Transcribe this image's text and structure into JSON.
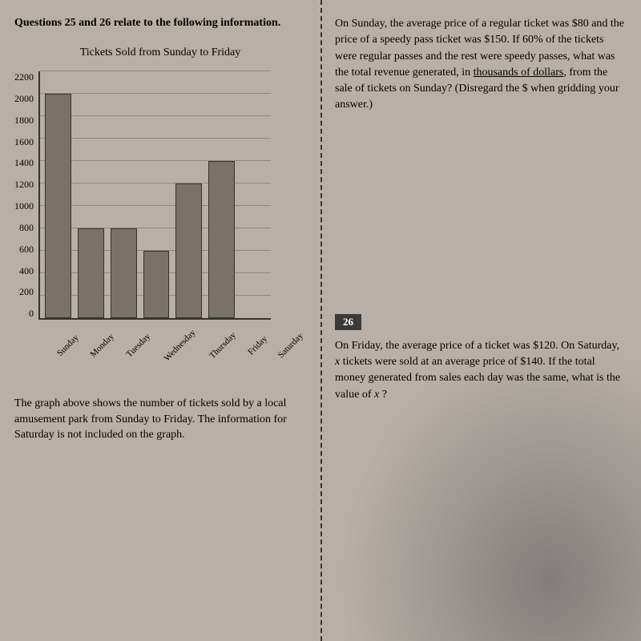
{
  "left": {
    "instruction": "Questions 25 and 26 relate to the following information.",
    "chart": {
      "type": "bar",
      "title": "Tickets Sold from Sunday to Friday",
      "categories": [
        "Sunday",
        "Monday",
        "Tuesday",
        "Wednesday",
        "Thursday",
        "Friday",
        "Saturday"
      ],
      "values": [
        2000,
        800,
        800,
        600,
        1200,
        1400,
        0
      ],
      "ylim": [
        0,
        2200
      ],
      "ytick_step": 200,
      "yticks": [
        "2200",
        "2000",
        "1800",
        "1600",
        "1400",
        "1200",
        "1000",
        "800",
        "600",
        "400",
        "200",
        "0"
      ],
      "bar_color": "#7a726a",
      "grid_color": "#888888",
      "axis_color": "#333333",
      "background_color": "#b8b0a8",
      "tick_fontsize": 12,
      "label_fontsize": 11
    },
    "caption": "The graph above shows the number of tickets sold by a local amusement park from Sunday to Friday. The information for Saturday is not included on the graph."
  },
  "right": {
    "q25_text": "On Sunday, the average price of a regular ticket was $80 and the price of a speedy pass ticket was $150. If 60% of the tickets were regular passes and the rest were speedy passes, what was the total revenue generated, in thousands of dollars, from the sale of tickets on Sunday? (Disregard the $ when gridding your answer.)",
    "q26_number": "26",
    "q26_text": "On Friday, the average price of a ticket was $120. On Saturday, x tickets were sold at an average price of $140. If the total money generated from sales each day was the same, what is the value of x ?"
  },
  "colors": {
    "page_bg": "#b8b0a8",
    "text": "#1a1a1a",
    "qnum_bg": "#3a3a3a",
    "qnum_fg": "#ffffff"
  }
}
